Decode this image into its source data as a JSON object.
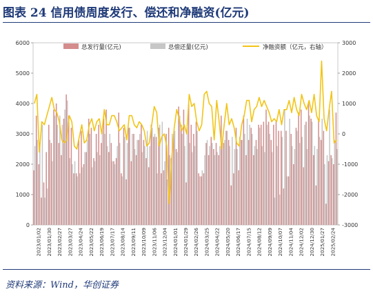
{
  "figure": {
    "title": "图表 24   信用债周度发行、偿还和净融资(亿元)",
    "source": "资料来源：Wind，华创证券"
  },
  "chart_data": {
    "type": "bar",
    "legend": {
      "issuance": "总发行量(亿元)",
      "repayment": "总偿还量(亿元)",
      "net": "净融资额（亿元，右轴）"
    },
    "colors": {
      "issuance": "#d48c8c",
      "repayment": "#c6c6c6",
      "net": "#f2c416"
    },
    "y_left": {
      "ylim": [
        0,
        6000
      ],
      "ticks": [
        "0",
        "1000",
        "2000",
        "3000",
        "4000",
        "5000",
        "6000"
      ]
    },
    "y_right": {
      "ylim": [
        -3000,
        3000
      ],
      "ticks": [
        "-3000",
        "-2000",
        "-1000",
        "0",
        "1000",
        "2000",
        "3000"
      ]
    },
    "x_ticks": [
      "2023/01/02",
      "2023/01/30",
      "2023/02/27",
      "2023/03/27",
      "2023/04/24",
      "2023/05/22",
      "2023/06/19",
      "2023/07/17",
      "2023/08/14",
      "2023/09/11",
      "2023/10/09",
      "2023/11/06",
      "2023/12/04",
      "2024/01/01",
      "2024/01/29",
      "2024/02/26",
      "2024/03/25",
      "2024/04/22",
      "2024/05/20",
      "2024/06/17",
      "2024/07/15",
      "2024/08/12",
      "2024/09/09",
      "2024/10/07",
      "2024/11/04",
      "2024/12/02",
      "2024/12/30",
      "2025/01/27",
      "2025/02/24"
    ],
    "issuance": [
      1800,
      3600,
      2000,
      900,
      1400,
      2400,
      3300,
      2700,
      3800,
      4000,
      2700,
      2300,
      3500,
      4300,
      3600,
      3200,
      1700,
      1700,
      2800,
      3100,
      2000,
      2400,
      3500,
      3200,
      2200,
      3000,
      3300,
      2700,
      3500,
      3800,
      2400,
      2700,
      2100,
      2200,
      3700,
      1700,
      3200,
      1500,
      3200,
      2100,
      3000,
      2300,
      2800,
      3300,
      2800,
      2200,
      1900,
      3300,
      2900,
      2900,
      3200,
      1700,
      1800,
      3000,
      3200,
      2200,
      3000,
      2500,
      3900,
      3300,
      3800,
      1400,
      4000,
      3300,
      3000,
      3400,
      1700,
      1600,
      1700,
      2700,
      2300,
      2900,
      2500,
      2700,
      2300,
      3600,
      2700,
      3100,
      2800,
      1300,
      1700,
      3200,
      1800,
      2800,
      3600,
      2300,
      2800,
      3200,
      2300,
      2800,
      3300,
      3300,
      3400,
      3800,
      3400,
      2800,
      3300,
      3400,
      3100,
      3100,
      1200,
      3100,
      1600,
      3000,
      2000,
      3200,
      3700,
      3800,
      1900,
      3400,
      4000,
      3500,
      2300,
      1300,
      3500,
      2800,
      3100,
      700,
      2100,
      2300,
      2000,
      3700
    ],
    "repayment": [
      2600,
      2800,
      2700,
      3300,
      900,
      1200,
      2800,
      2100,
      3600,
      3300,
      3600,
      3300,
      3800,
      4100,
      2200,
      2000,
      2100,
      1600,
      1700,
      1900,
      2400,
      2800,
      3000,
      1900,
      2100,
      2400,
      2300,
      3100,
      3000,
      2600,
      3000,
      2100,
      2000,
      2600,
      2700,
      1600,
      2900,
      2700,
      3200,
      3000,
      2500,
      2800,
      3000,
      2400,
      2600,
      3100,
      2600,
      3200,
      3000,
      1700,
      3300,
      3400,
      2100,
      1500,
      2300,
      3000,
      3100,
      2400,
      3600,
      3000,
      2600,
      3200,
      2700,
      2400,
      2600,
      3100,
      1600,
      1800,
      2300,
      2800,
      2600,
      2700,
      2300,
      2400,
      2600,
      2700,
      2800,
      3100,
      2600,
      2900,
      2500,
      2500,
      2900,
      2800,
      3000,
      3500,
      3300,
      3000,
      2600,
      2500,
      3200,
      2600,
      2400,
      3300,
      3000,
      2400,
      900,
      2600,
      1000,
      2900,
      3800,
      1600,
      3500,
      2600,
      2500,
      3100,
      2700,
      2900,
      3300,
      2500,
      3600,
      3400,
      2600,
      2500,
      2900,
      3500,
      2000,
      2300,
      3800,
      2200,
      2800,
      2500
    ],
    "net": [
      1000,
      1300,
      -600,
      400,
      300,
      600,
      900,
      1200,
      800,
      700,
      400,
      -200,
      -300,
      -200,
      600,
      400,
      -400,
      -500,
      -100,
      300,
      -300,
      -200,
      300,
      500,
      100,
      400,
      500,
      0,
      800,
      300,
      300,
      600,
      600,
      400,
      100,
      200,
      300,
      -200,
      600,
      600,
      300,
      200,
      400,
      300,
      100,
      -400,
      -300,
      300,
      900,
      700,
      -400,
      -100,
      0,
      -400,
      -2300,
      -800,
      200,
      800,
      500,
      100,
      300,
      0,
      1300,
      900,
      1000,
      400,
      100,
      300,
      1300,
      1400,
      1000,
      900,
      -200,
      1100,
      400,
      -500,
      300,
      1000,
      300,
      500,
      200,
      -300,
      -400,
      300,
      600,
      1100,
      1100,
      400,
      800,
      900,
      1200,
      900,
      1100,
      900,
      700,
      400,
      500,
      400,
      800,
      300,
      800,
      800,
      1100,
      700,
      1200,
      800,
      600,
      1300,
      1000,
      800,
      1100,
      700,
      1300,
      600,
      400,
      2400,
      500,
      100,
      800,
      1400,
      -300,
      -200
    ]
  }
}
